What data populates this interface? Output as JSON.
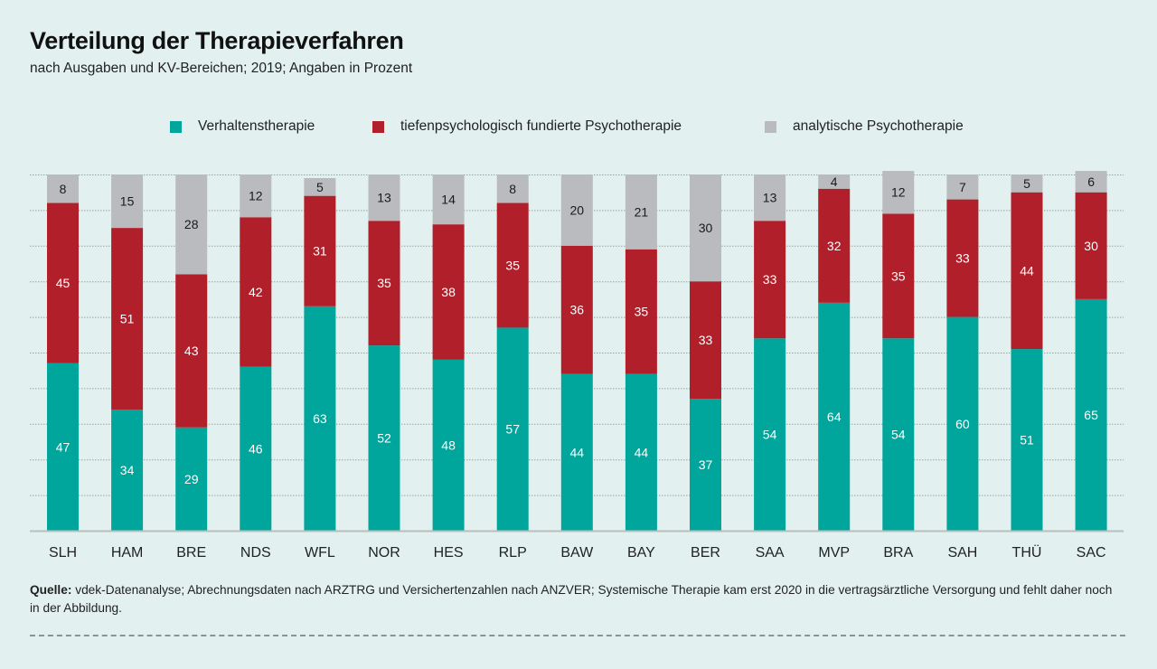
{
  "header": {
    "title": "Verteilung der Therapieverfahren",
    "subtitle": "nach Ausgaben und KV-Bereichen; 2019; Angaben in Prozent"
  },
  "colors": {
    "background": "#e2f1ef",
    "verhaltenstherapie": "#00a59c",
    "tiefenpsychologisch": "#b01f2a",
    "analytisch": "#b9bbbe",
    "gridline": "#9aa5a3",
    "axis": "#b8bfbe"
  },
  "footer": {
    "source_label": "Quelle:",
    "source_text": "vdek-Datenanalyse; Abrechnungsdaten nach ARZTRG und Versichertenzahlen nach ANZVER; Systemische Therapie kam erst 2020 in die vertragsärztliche Versorgung und fehlt daher noch in der Abbildung."
  },
  "chart_data": {
    "type": "bar",
    "stacked": true,
    "title": "Verteilung der Therapieverfahren",
    "subtitle": "nach Ausgaben und KV-Bereichen; 2019; Angaben in Prozent",
    "xlabel": "",
    "ylabel": "",
    "ylim": [
      0,
      100
    ],
    "grid": true,
    "grid_step": 10,
    "legend_position": "top",
    "categories": [
      "SLH",
      "HAM",
      "BRE",
      "NDS",
      "WFL",
      "NOR",
      "HES",
      "RLP",
      "BAW",
      "BAY",
      "BER",
      "SAA",
      "MVP",
      "BRA",
      "SAH",
      "THÜ",
      "SAC"
    ],
    "series": [
      {
        "name": "Verhaltenstherapie",
        "color": "#00a59c",
        "label_color": "#ffffff",
        "values": [
          47,
          34,
          29,
          46,
          63,
          52,
          48,
          57,
          44,
          44,
          37,
          54,
          64,
          54,
          60,
          51,
          65
        ]
      },
      {
        "name": "tiefenpsychologisch fundierte Psychotherapie",
        "color": "#b01f2a",
        "label_color": "#ffffff",
        "values": [
          45,
          51,
          43,
          42,
          31,
          35,
          38,
          35,
          36,
          35,
          33,
          33,
          32,
          35,
          33,
          44,
          30
        ]
      },
      {
        "name": "analytische Psychotherapie",
        "color": "#b9bbbe",
        "label_color": "#1a1a1a",
        "values": [
          8,
          15,
          28,
          12,
          5,
          13,
          14,
          8,
          20,
          21,
          30,
          13,
          4,
          12,
          7,
          5,
          6
        ]
      }
    ]
  }
}
